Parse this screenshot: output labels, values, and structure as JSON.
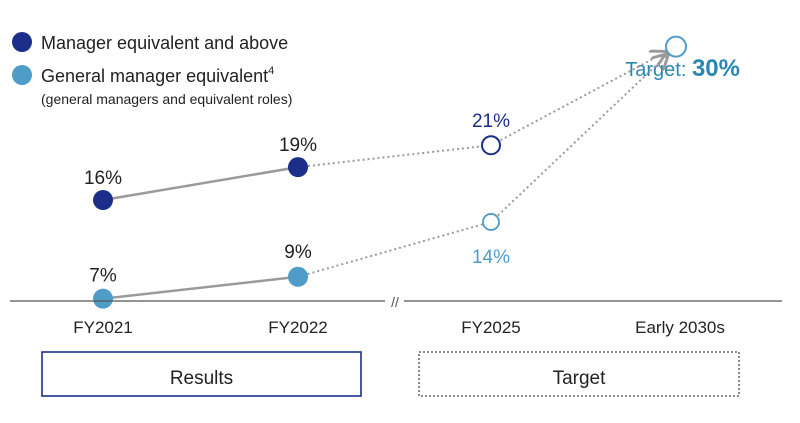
{
  "chart_data": {
    "type": "line",
    "categories": [
      "FY2021",
      "FY2022",
      "FY2025",
      "Early 2030s"
    ],
    "series": [
      {
        "name": "Manager equivalent and above",
        "values": [
          16,
          19,
          21,
          30
        ],
        "labels": [
          "16%",
          "19%",
          "21%",
          null
        ],
        "color": "#1b2f8a"
      },
      {
        "name": "General manager equivalent",
        "superscript": "4",
        "subtitle": "(general managers and equivalent roles)",
        "values": [
          7,
          9,
          14,
          30
        ],
        "labels": [
          "7%",
          "9%",
          "14%",
          null
        ],
        "color": "#4f9cc8"
      }
    ],
    "target": {
      "prefix": "Target: ",
      "value": "30%",
      "color": "#2a86b2"
    },
    "groups": [
      {
        "label": "Results",
        "style": "solid",
        "color": "#1b2f8a"
      },
      {
        "label": "Target",
        "style": "dotted",
        "color": "#8a8a8a"
      }
    ],
    "axis_break": "//",
    "axis_color": "#555555",
    "actual_line_color": "#9a9a9a",
    "projection_line_color": "#9a9a9a"
  }
}
